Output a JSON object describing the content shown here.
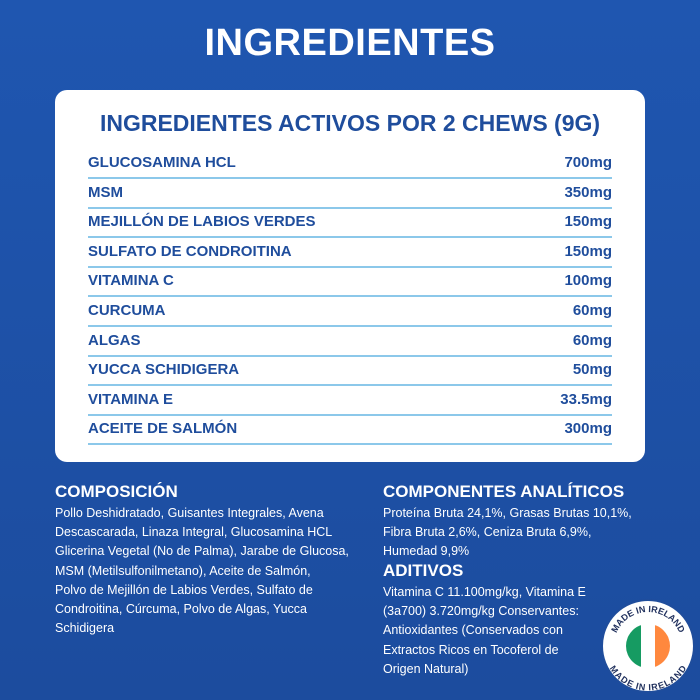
{
  "header": {
    "title": "INGREDIENTES"
  },
  "table": {
    "title": "INGREDIENTES ACTIVOS POR 2 CHEWS (9G)",
    "rows": [
      [
        "GLUCOSAMINA HCL",
        "700mg"
      ],
      [
        "MSM",
        "350mg"
      ],
      [
        "MEJILLÓN DE LABIOS VERDES",
        "150mg"
      ],
      [
        "SULFATO DE CONDROITINA",
        "150mg"
      ],
      [
        "VITAMINA C",
        "100mg"
      ],
      [
        "CURCUMA",
        "60mg"
      ],
      [
        "ALGAS",
        "60mg"
      ],
      [
        "YUCCA SCHIDIGERA",
        "50mg"
      ],
      [
        "VITAMINA E",
        "33.5mg"
      ],
      [
        "ACEITE DE SALMÓN",
        "300mg"
      ]
    ]
  },
  "composition": {
    "title": "COMPOSICIÓN",
    "lines": [
      "Pollo Deshidratado, Guisantes Integrales, Avena",
      "Descascarada, Linaza Integral, Glucosamina HCL",
      "Glicerina Vegetal (No de Palma), Jarabe de Glucosa,",
      "MSM (Metilsulfonilmetano), Aceite de Salmón,",
      "Polvo de Mejillón de Labios Verdes, Sulfato de",
      "Condroitina, Cúrcuma, Polvo de Algas, Yucca",
      "Schidigera"
    ]
  },
  "analytics": {
    "title": "COMPONENTES ANALÍTICOS",
    "lines": [
      "Proteína Bruta 24,1%, Grasas Brutas 10,1%,",
      "Fibra Bruta 2,6%, Ceniza Bruta 6,9%,",
      "Humedad 9,9%"
    ]
  },
  "additives": {
    "title": "ADITIVOS",
    "lines": [
      "Vitamina C 11.100mg/kg, Vitamina E",
      "(3a700) 3.720mg/kg Conservantes:",
      "Antioxidantes (Conservados con",
      "Extractos Ricos en Tocoferol de",
      "Origen Natural)"
    ]
  },
  "badge": {
    "labels": [
      "MADE IN IRELAND",
      "MADE IN IRELAND"
    ]
  }
}
